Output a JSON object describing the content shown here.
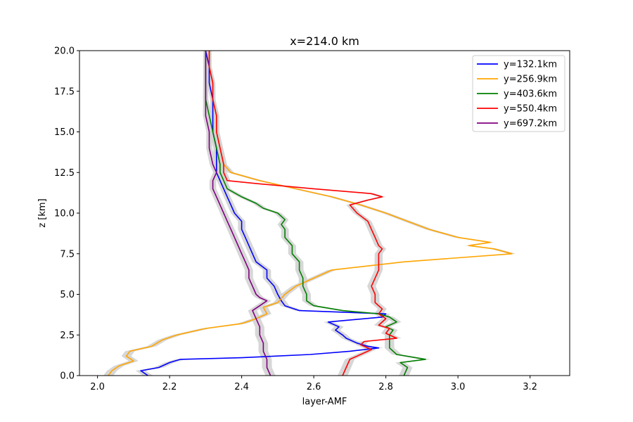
{
  "chart_data": {
    "type": "line",
    "title": "x=214.0 km",
    "xlabel": "layer-AMF",
    "ylabel": "z [km]",
    "xlim": [
      1.95,
      3.31
    ],
    "ylim": [
      0,
      20
    ],
    "xticks": [
      2.0,
      2.2,
      2.4,
      2.6,
      2.8,
      3.0,
      3.2
    ],
    "xtick_labels": [
      "2.0",
      "2.2",
      "2.4",
      "2.6",
      "2.8",
      "3.0",
      "3.2"
    ],
    "yticks": [
      0,
      2.5,
      5,
      7.5,
      10,
      12.5,
      15,
      17.5,
      20
    ],
    "ytick_labels": [
      "0.0",
      "2.5",
      "5.0",
      "7.5",
      "10.0",
      "12.5",
      "15.0",
      "17.5",
      "20.0"
    ],
    "grid": false,
    "legend_position": "top-right",
    "band_color": "#d3d3d3",
    "series": [
      {
        "name": "y=132.1km",
        "color": "#0000ff",
        "z": [
          0.0,
          0.3,
          0.5,
          0.8,
          1.0,
          1.1,
          1.3,
          1.5,
          1.7,
          1.8,
          2.0,
          2.3,
          2.5,
          2.8,
          3.0,
          3.3,
          3.6,
          3.8,
          4.0,
          4.3,
          4.6,
          5.0,
          5.5,
          6.0,
          6.5,
          7.0,
          7.5,
          8.0,
          8.5,
          9.0,
          9.5,
          10.0,
          10.5,
          11.0,
          11.5,
          12.0,
          12.5,
          13.0,
          14.0,
          15.0,
          16.0,
          17.0,
          18.0,
          19.0,
          20.0
        ],
        "x": [
          2.14,
          2.12,
          2.17,
          2.2,
          2.23,
          2.4,
          2.59,
          2.7,
          2.78,
          2.75,
          2.72,
          2.69,
          2.68,
          2.66,
          2.67,
          2.64,
          2.79,
          2.8,
          2.56,
          2.52,
          2.51,
          2.5,
          2.49,
          2.47,
          2.47,
          2.44,
          2.43,
          2.42,
          2.41,
          2.4,
          2.4,
          2.38,
          2.37,
          2.36,
          2.35,
          2.34,
          2.33,
          2.33,
          2.33,
          2.32,
          2.32,
          2.32,
          2.31,
          2.31,
          2.3
        ]
      },
      {
        "name": "y=256.9km",
        "color": "#ffa500",
        "z": [
          0.0,
          0.3,
          0.6,
          0.9,
          1.2,
          1.5,
          1.8,
          2.2,
          2.5,
          2.9,
          3.2,
          3.5,
          3.8,
          4.2,
          4.5,
          5.0,
          5.5,
          6.0,
          6.5,
          7.0,
          7.5,
          7.8,
          8.0,
          8.2,
          8.5,
          9.0,
          9.5,
          10.0,
          10.5,
          11.0,
          11.5,
          12.0,
          12.5,
          13.0,
          14.0,
          15.0,
          16.0,
          17.0,
          18.0,
          19.0,
          20.0
        ],
        "x": [
          2.03,
          2.04,
          2.06,
          2.1,
          2.08,
          2.09,
          2.15,
          2.18,
          2.22,
          2.3,
          2.4,
          2.44,
          2.47,
          2.46,
          2.5,
          2.52,
          2.55,
          2.6,
          2.65,
          2.85,
          3.15,
          3.1,
          3.03,
          3.09,
          3.0,
          2.92,
          2.86,
          2.8,
          2.73,
          2.65,
          2.55,
          2.45,
          2.37,
          2.35,
          2.34,
          2.33,
          2.33,
          2.32,
          2.32,
          2.31,
          2.31
        ]
      },
      {
        "name": "y=403.6km",
        "color": "#008000",
        "z": [
          0.0,
          0.5,
          0.8,
          1.0,
          1.3,
          1.7,
          2.0,
          2.5,
          2.8,
          3.0,
          3.3,
          3.6,
          3.8,
          4.0,
          4.3,
          4.6,
          5.0,
          5.5,
          6.0,
          6.5,
          7.0,
          7.5,
          8.0,
          8.5,
          9.0,
          9.3,
          9.6,
          10.0,
          10.3,
          10.6,
          11.0,
          11.5,
          12.0,
          12.5,
          13.0,
          14.0,
          15.0,
          16.0,
          17.0,
          18.0,
          19.0,
          20.0
        ],
        "x": [
          2.85,
          2.86,
          2.84,
          2.91,
          2.83,
          2.81,
          2.81,
          2.81,
          2.82,
          2.8,
          2.83,
          2.81,
          2.78,
          2.68,
          2.6,
          2.58,
          2.58,
          2.57,
          2.57,
          2.56,
          2.56,
          2.54,
          2.54,
          2.52,
          2.52,
          2.51,
          2.52,
          2.5,
          2.46,
          2.44,
          2.4,
          2.36,
          2.35,
          2.34,
          2.34,
          2.33,
          2.32,
          2.31,
          2.3,
          2.3,
          2.3,
          2.3
        ]
      },
      {
        "name": "y=550.4km",
        "color": "#ff0000",
        "z": [
          0.0,
          0.5,
          1.0,
          1.3,
          1.6,
          1.9,
          2.1,
          2.3,
          2.6,
          2.9,
          3.1,
          3.5,
          3.8,
          4.1,
          4.5,
          5.0,
          5.5,
          6.0,
          6.5,
          7.0,
          7.5,
          7.8,
          8.0,
          8.5,
          9.0,
          9.5,
          10.0,
          10.5,
          10.8,
          11.0,
          11.2,
          11.5,
          11.8,
          12.0,
          12.5,
          13.0,
          14.0,
          15.0,
          16.0,
          17.0,
          18.0,
          19.0,
          20.0
        ],
        "x": [
          2.68,
          2.69,
          2.7,
          2.73,
          2.76,
          2.73,
          2.74,
          2.83,
          2.8,
          2.81,
          2.78,
          2.8,
          2.78,
          2.79,
          2.77,
          2.77,
          2.76,
          2.77,
          2.78,
          2.78,
          2.78,
          2.79,
          2.78,
          2.77,
          2.76,
          2.75,
          2.72,
          2.7,
          2.75,
          2.79,
          2.76,
          2.6,
          2.45,
          2.36,
          2.35,
          2.35,
          2.34,
          2.33,
          2.33,
          2.32,
          2.32,
          2.31,
          2.31
        ]
      },
      {
        "name": "y=697.2km",
        "color": "#800080",
        "z": [
          0.0,
          0.5,
          1.0,
          1.5,
          2.0,
          2.5,
          3.0,
          3.5,
          4.0,
          4.3,
          4.6,
          4.8,
          5.0,
          5.5,
          6.0,
          6.5,
          7.0,
          7.5,
          8.0,
          8.5,
          9.0,
          9.5,
          10.0,
          10.5,
          11.0,
          11.5,
          12.0,
          12.5,
          13.0,
          14.0,
          15.0,
          16.0,
          17.0,
          18.0,
          19.0,
          20.0
        ],
        "x": [
          2.48,
          2.47,
          2.47,
          2.46,
          2.46,
          2.45,
          2.45,
          2.44,
          2.43,
          2.45,
          2.47,
          2.45,
          2.44,
          2.43,
          2.42,
          2.42,
          2.41,
          2.4,
          2.39,
          2.38,
          2.37,
          2.36,
          2.35,
          2.34,
          2.33,
          2.32,
          2.32,
          2.33,
          2.32,
          2.31,
          2.31,
          2.3,
          2.3,
          2.3,
          2.3,
          2.3
        ]
      }
    ]
  }
}
